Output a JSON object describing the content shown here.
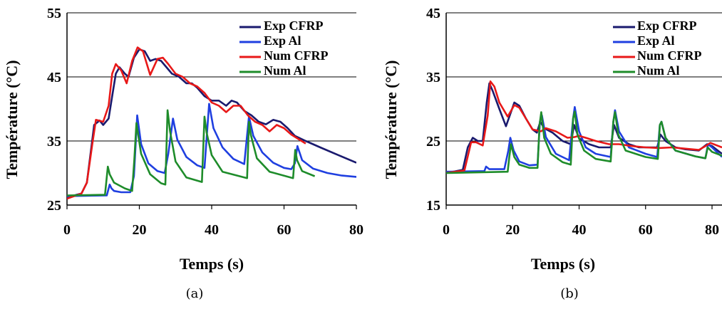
{
  "chart_data": [
    {
      "type": "line",
      "caption": "(a)",
      "xlabel": "Temps (s)",
      "ylabel": "Température (°C)",
      "xlim": [
        0,
        80
      ],
      "ylim": [
        25,
        55
      ],
      "xticks": [
        "0",
        "20",
        "40",
        "60",
        "80"
      ],
      "yticks": [
        "25",
        "35",
        "45",
        "55"
      ],
      "grid": "horizontal",
      "legend": "top-right",
      "series": [
        {
          "name": "Exp CFRP",
          "color": "#1a1a6e",
          "x": [
            0,
            4,
            5.5,
            6.5,
            7.5,
            9,
            10,
            11.5,
            12.5,
            13.5,
            14.5,
            16,
            17,
            18.5,
            20,
            21.5,
            23,
            24.5,
            26,
            27.5,
            29,
            31,
            33,
            34.5,
            36,
            38,
            40,
            42,
            44,
            45.5,
            47,
            49,
            51,
            53,
            55,
            57,
            59,
            61,
            63,
            66,
            70,
            75,
            80
          ],
          "y": [
            26.2,
            26.8,
            28.5,
            33,
            37.5,
            38.2,
            37.5,
            38.5,
            42,
            45.5,
            46.5,
            45.5,
            45,
            48,
            49.3,
            49,
            47.5,
            47.8,
            47.5,
            46.5,
            45.5,
            45,
            44,
            44,
            43.3,
            42,
            41.3,
            41.3,
            40.5,
            41.3,
            41,
            39.7,
            39,
            38,
            37.6,
            38.3,
            38,
            37,
            35.8,
            35,
            34,
            32.8,
            31.6
          ]
        },
        {
          "name": "Exp Al",
          "color": "#1f3fe0",
          "x": [
            0,
            11,
            11.8,
            12.3,
            13,
            15,
            17.5,
            18.5,
            19.4,
            20.5,
            22.5,
            25,
            27,
            28,
            29.3,
            30.5,
            33,
            36,
            38,
            39.3,
            40.5,
            43,
            46,
            49,
            50.3,
            51.5,
            54,
            57,
            60,
            62,
            63,
            63.7,
            65,
            68,
            72,
            76,
            80
          ],
          "y": [
            26.4,
            26.5,
            28.2,
            27.6,
            27.2,
            27,
            27,
            29.5,
            39,
            34.5,
            31.5,
            30.3,
            30,
            33,
            38.5,
            35.2,
            32.5,
            31.2,
            30.8,
            40.8,
            37,
            34,
            32.2,
            31.4,
            38.8,
            35.8,
            33.2,
            31.6,
            30.8,
            30.6,
            31.5,
            34.2,
            32,
            30.7,
            30,
            29.6,
            29.4
          ]
        },
        {
          "name": "Num CFRP",
          "color": "#e81818",
          "x": [
            0,
            4,
            5.5,
            7,
            8,
            10,
            11.5,
            12.5,
            13.5,
            15,
            16.5,
            18,
            19.5,
            21,
            23,
            25,
            26.5,
            28,
            30,
            32,
            34,
            36,
            38,
            40,
            42,
            44,
            46,
            48,
            50,
            52,
            54,
            56,
            58,
            60,
            62,
            66
          ],
          "y": [
            26.0,
            26.8,
            28.5,
            34.5,
            38.3,
            38,
            40.5,
            45.5,
            47,
            46,
            44,
            47.5,
            49.6,
            49,
            45.3,
            47.8,
            48,
            47,
            45.5,
            45,
            44,
            43.5,
            42.5,
            41,
            40.5,
            39.5,
            40.5,
            40.5,
            39,
            38,
            37.5,
            36.5,
            37.5,
            37,
            36,
            34.6
          ]
        },
        {
          "name": "Num Al",
          "color": "#1e8c2a",
          "x": [
            0,
            10.5,
            11.3,
            11.8,
            13,
            16,
            18,
            18.6,
            19.2,
            20.5,
            23,
            26,
            27.2,
            27.8,
            28.5,
            30,
            33,
            37.3,
            38,
            38.6,
            40,
            43,
            49.8,
            50.3,
            50.8,
            52.5,
            56,
            62.5,
            63.1,
            63.6,
            65,
            68.5
          ],
          "y": [
            26.5,
            26.6,
            31,
            29.8,
            28.5,
            27.6,
            27.2,
            32,
            37.8,
            33,
            29.8,
            28.4,
            28.2,
            39.8,
            36.5,
            31.8,
            29.3,
            28.6,
            38.8,
            36.3,
            32.8,
            30.2,
            29.2,
            38,
            36,
            32.3,
            30.2,
            29.2,
            33.6,
            32,
            30.3,
            29.5
          ]
        }
      ]
    },
    {
      "type": "line",
      "caption": "(b)",
      "xlabel": "Temps (s)",
      "ylabel": "Température (°C)",
      "xlim": [
        0,
        83
      ],
      "ylim": [
        15,
        45
      ],
      "xticks": [
        "0",
        "20",
        "40",
        "60",
        "80"
      ],
      "yticks": [
        "15",
        "25",
        "35",
        "45"
      ],
      "grid": "horizontal",
      "legend": "top-right",
      "series": [
        {
          "name": "Exp CFRP",
          "color": "#1a1a6e",
          "x": [
            0,
            5,
            6.5,
            8,
            9.5,
            11,
            12.2,
            13,
            14,
            16,
            18,
            19.5,
            20.5,
            22,
            24,
            26,
            27.3,
            28.3,
            29.5,
            32,
            35,
            37.5,
            38.5,
            40,
            43,
            46,
            49.5,
            50.5,
            52,
            55,
            58,
            61,
            63.5,
            64.5,
            66,
            69,
            72,
            76,
            78.5,
            80,
            83
          ],
          "y": [
            20,
            20.5,
            24,
            25.5,
            25,
            25,
            31,
            34,
            32.8,
            30,
            27.3,
            29.5,
            31,
            30.5,
            28.5,
            26.8,
            26.3,
            28,
            27,
            26.3,
            25,
            24.5,
            27.5,
            25.4,
            24.5,
            24,
            24,
            27.5,
            25.5,
            24.5,
            24,
            24,
            24,
            26,
            25,
            24,
            23.7,
            23.5,
            24.5,
            24.2,
            23
          ]
        },
        {
          "name": "Exp Al",
          "color": "#1f3fe0",
          "x": [
            0,
            11.5,
            12,
            13,
            17.5,
            18.7,
            19.3,
            20.3,
            22,
            25,
            27.5,
            28.2,
            28.8,
            30,
            33,
            37,
            38.2,
            38.7,
            40,
            42,
            45,
            49.5,
            50.3,
            50.8,
            52,
            55,
            60,
            63.5,
            64.3,
            64.8,
            66,
            69,
            75,
            78,
            78.8,
            80,
            83
          ],
          "y": [
            20.2,
            20.3,
            21,
            20.6,
            20.6,
            23.5,
            25.5,
            23.5,
            21.8,
            21.2,
            21.3,
            28,
            29,
            25.6,
            23,
            22,
            28.5,
            30.3,
            26.5,
            24,
            23,
            22.5,
            28,
            29.8,
            26.5,
            24,
            23,
            22.5,
            27.5,
            28,
            25.5,
            23.5,
            22.6,
            22.3,
            24.5,
            24,
            22.5
          ]
        },
        {
          "name": "Num CFRP",
          "color": "#e81818",
          "x": [
            0,
            5.5,
            7.5,
            9,
            11,
            12.5,
            13.3,
            14.5,
            16,
            18.5,
            20.5,
            22,
            24,
            26,
            28.5,
            30,
            33,
            36.5,
            38.5,
            40,
            42,
            45,
            49,
            52,
            56,
            60,
            64,
            68,
            72,
            76,
            78,
            79.5,
            83
          ],
          "y": [
            20,
            20.4,
            24.8,
            24.8,
            24.3,
            29,
            34.3,
            33.5,
            31,
            28.8,
            30.6,
            30.2,
            28.5,
            26.8,
            26.5,
            27,
            26.5,
            25.5,
            25.6,
            25.8,
            25.5,
            25,
            24.5,
            24.5,
            24.2,
            24,
            23.9,
            24,
            23.8,
            23.6,
            24.2,
            24.7,
            24
          ]
        },
        {
          "name": "Num Al",
          "color": "#1e8c2a",
          "x": [
            0,
            18.5,
            19,
            19.5,
            20.5,
            22,
            25,
            27.5,
            28.1,
            28.6,
            29.5,
            31.5,
            35,
            37.5,
            38.2,
            38.7,
            39.5,
            41.5,
            45,
            49.5,
            50.3,
            50.8,
            51.8,
            54,
            60,
            63.7,
            64.3,
            64.8,
            66,
            69,
            75,
            78,
            78.7,
            80,
            83
          ],
          "y": [
            20,
            20.2,
            22.5,
            24.5,
            22.5,
            21.3,
            20.8,
            20.8,
            27.5,
            29.5,
            25.5,
            23,
            21.7,
            21.3,
            28.5,
            29.6,
            26,
            23.5,
            22.2,
            21.8,
            28,
            29.5,
            26,
            23.5,
            22.5,
            22.2,
            27.5,
            28,
            25.5,
            23.5,
            22.6,
            22.3,
            24,
            23.3,
            22.7
          ]
        }
      ]
    }
  ]
}
